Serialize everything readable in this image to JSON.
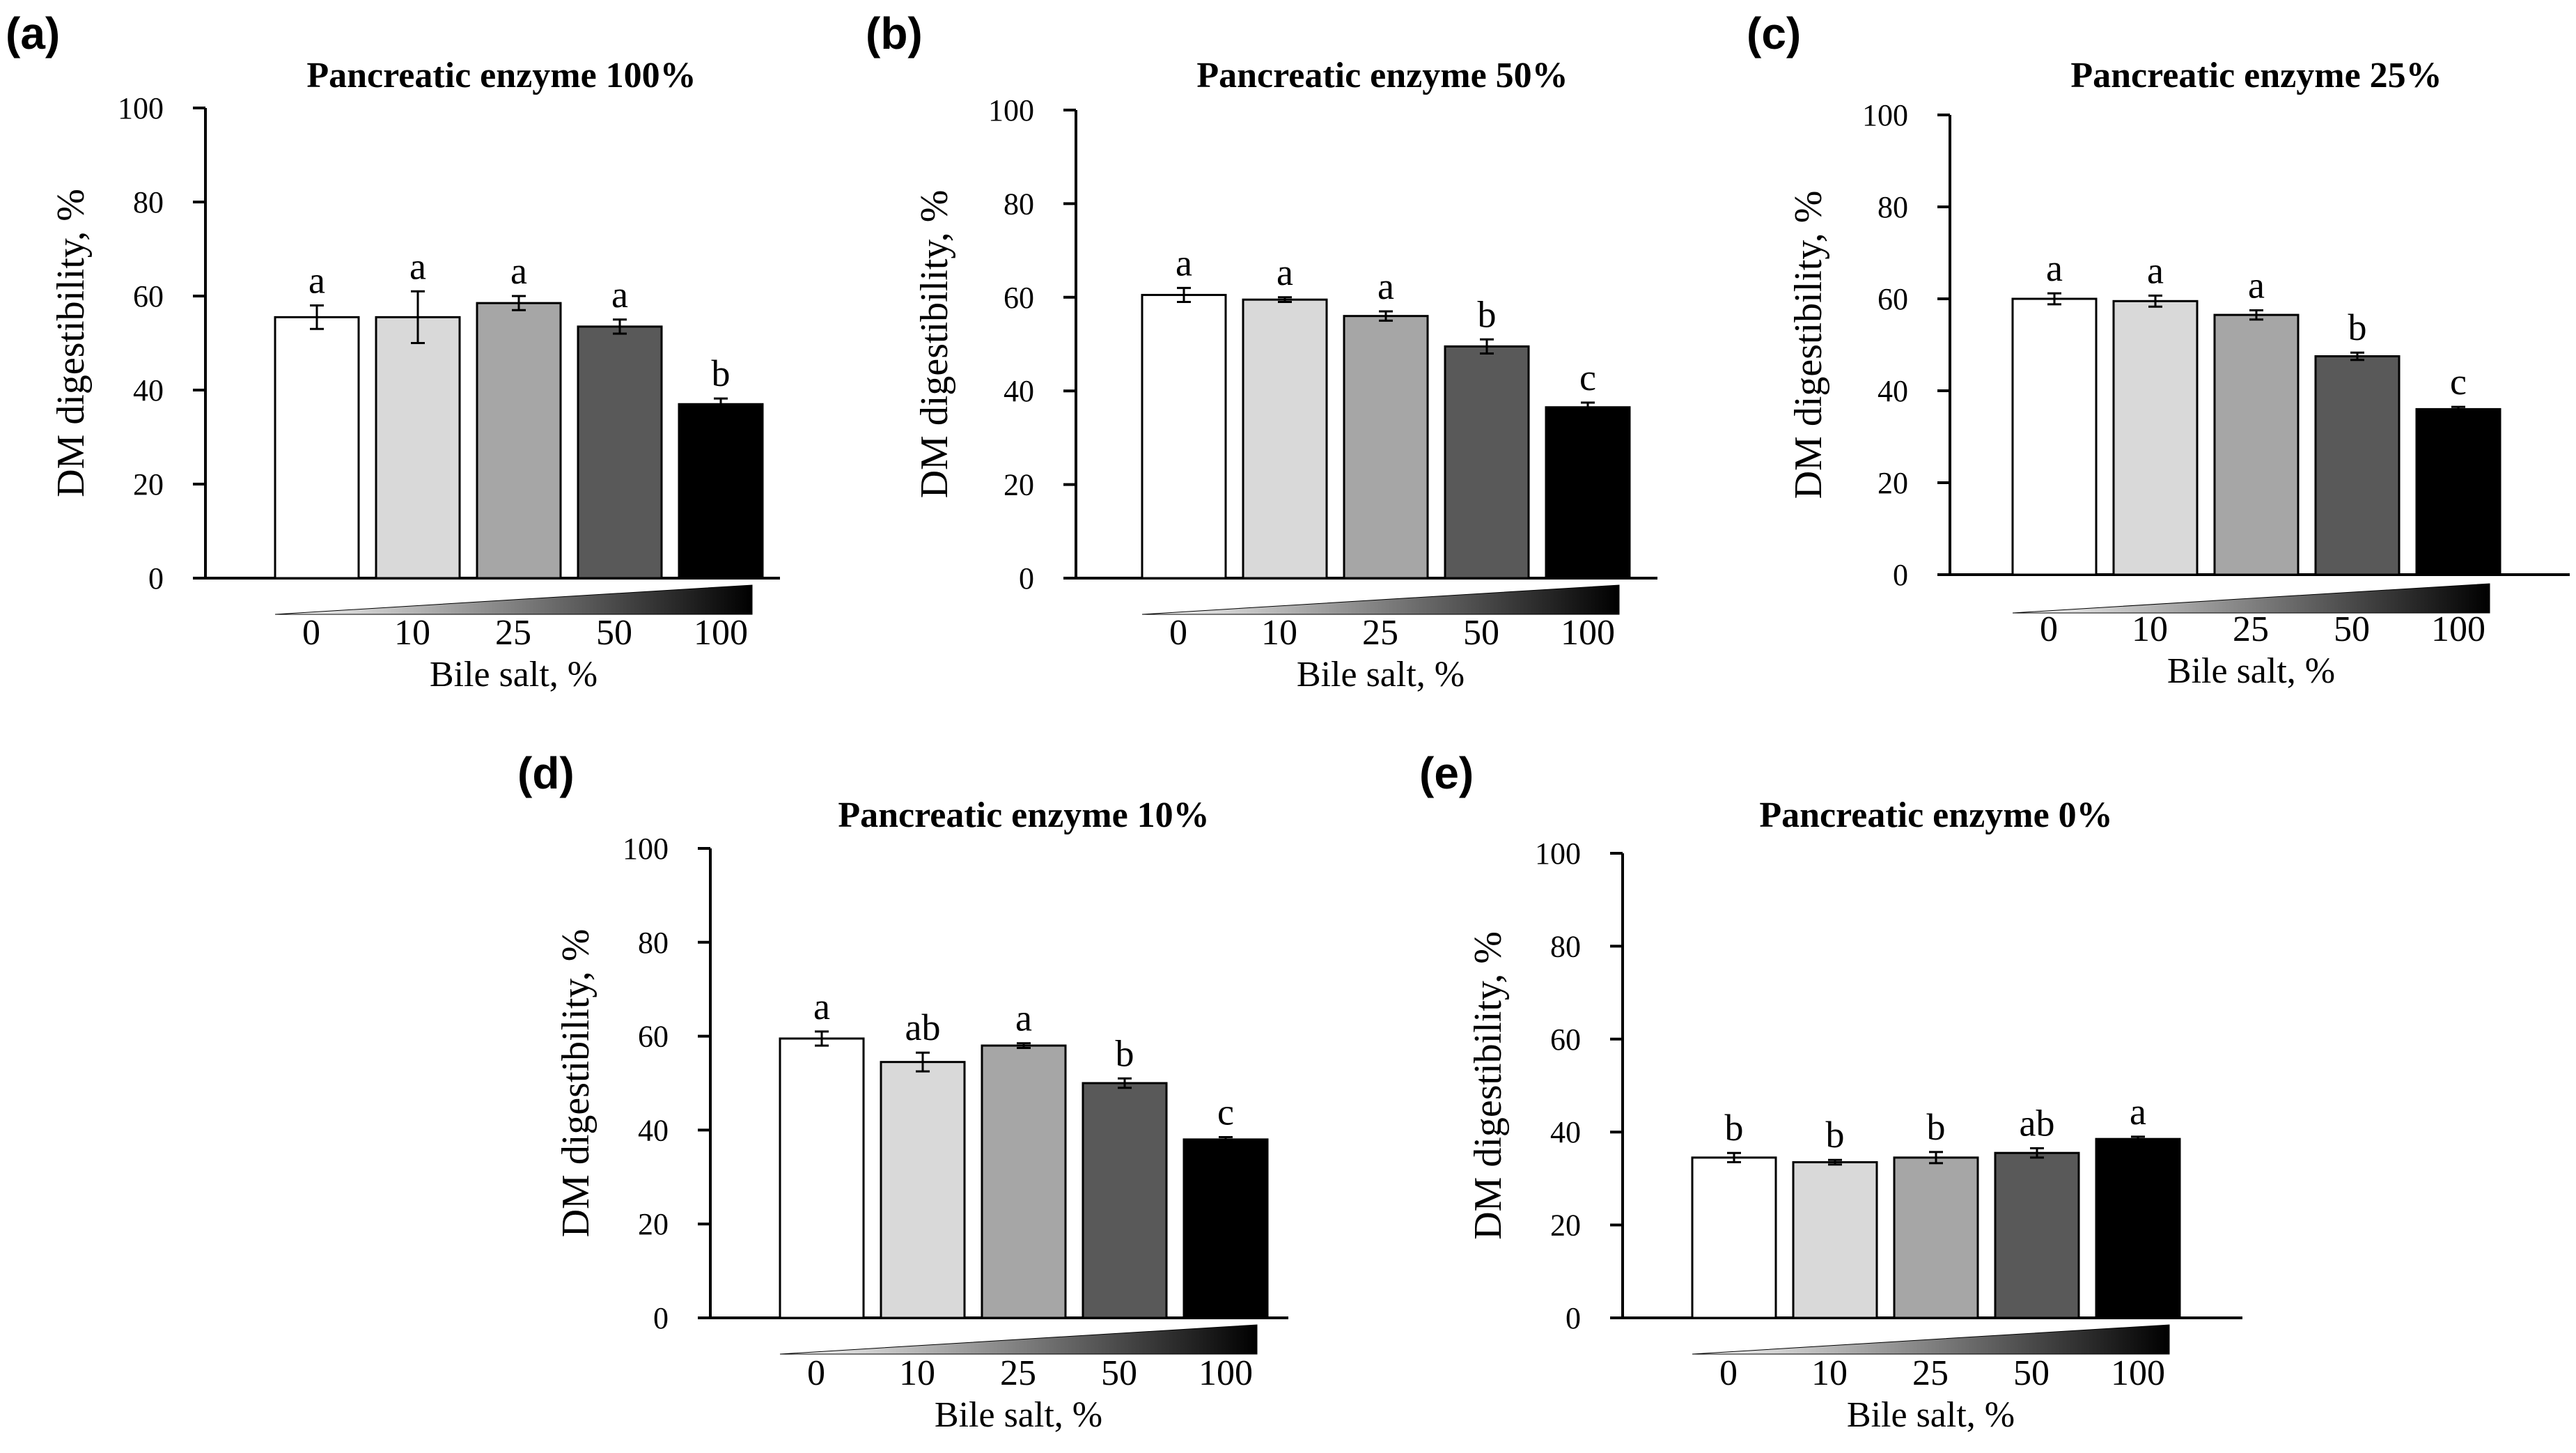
{
  "bar_colors": [
    "#ffffff",
    "#d9d9d9",
    "#a6a6a6",
    "#595959",
    "#000000"
  ],
  "chart_data": [
    {
      "panel": "(a)",
      "type": "bar",
      "title": "Pancreatic enzyme 100%",
      "ylabel": "DM digestibility, %",
      "xlabel": "Bile salt, %",
      "categories": [
        "0",
        "10",
        "25",
        "50",
        "100"
      ],
      "values": [
        55.5,
        55.5,
        58.5,
        53.5,
        37
      ],
      "errors": [
        2.5,
        5.5,
        1.5,
        1.5,
        1.2
      ],
      "letters": [
        "a",
        "a",
        "a",
        "a",
        "b"
      ],
      "ylim": [
        0,
        100
      ],
      "yticks": [
        "0",
        "20",
        "40",
        "60",
        "80",
        "100"
      ]
    },
    {
      "panel": "(b)",
      "type": "bar",
      "title": "Pancreatic enzyme 50%",
      "ylabel": "DM digestibility, %",
      "xlabel": "Bile salt, %",
      "categories": [
        "0",
        "10",
        "25",
        "50",
        "100"
      ],
      "values": [
        60.5,
        59.5,
        56,
        49.5,
        36.5
      ],
      "errors": [
        1.5,
        0.5,
        1.0,
        1.5,
        1.0
      ],
      "letters": [
        "a",
        "a",
        "a",
        "b",
        "c"
      ],
      "ylim": [
        0,
        100
      ],
      "yticks": [
        "0",
        "20",
        "40",
        "60",
        "80",
        "100"
      ]
    },
    {
      "panel": "(c)",
      "type": "bar",
      "title": "Pancreatic enzyme 25%",
      "ylabel": "DM digestibility, %",
      "xlabel": "Bile salt, %",
      "categories": [
        "0",
        "10",
        "25",
        "50",
        "100"
      ],
      "values": [
        60,
        59.5,
        56.5,
        47.5,
        36
      ],
      "errors": [
        1.2,
        1.2,
        1.0,
        0.8,
        0.5
      ],
      "letters": [
        "a",
        "a",
        "a",
        "b",
        "c"
      ],
      "ylim": [
        0,
        100
      ],
      "yticks": [
        "0",
        "20",
        "40",
        "60",
        "80",
        "100"
      ]
    },
    {
      "panel": "(d)",
      "type": "bar",
      "title": "Pancreatic enzyme 10%",
      "ylabel": "DM digestibility, %",
      "xlabel": "Bile salt, %",
      "categories": [
        "0",
        "10",
        "25",
        "50",
        "100"
      ],
      "values": [
        59.5,
        54.5,
        58,
        50,
        38
      ],
      "errors": [
        1.5,
        2.0,
        0.5,
        1.0,
        0.5
      ],
      "letters": [
        "a",
        "ab",
        "a",
        "b",
        "c"
      ],
      "ylim": [
        0,
        100
      ],
      "yticks": [
        "0",
        "20",
        "40",
        "60",
        "80",
        "100"
      ]
    },
    {
      "panel": "(e)",
      "type": "bar",
      "title": "Pancreatic enzyme 0%",
      "ylabel": "DM digestibility, %",
      "xlabel": "Bile salt, %",
      "categories": [
        "0",
        "10",
        "25",
        "50",
        "100"
      ],
      "values": [
        34.5,
        33.5,
        34.5,
        35.5,
        38.5
      ],
      "errors": [
        1.0,
        0.5,
        1.2,
        1.0,
        0.5
      ],
      "letters": [
        "b",
        "b",
        "b",
        "ab",
        "a"
      ],
      "ylim": [
        0,
        100
      ],
      "yticks": [
        "0",
        "20",
        "40",
        "60",
        "80",
        "100"
      ]
    }
  ]
}
